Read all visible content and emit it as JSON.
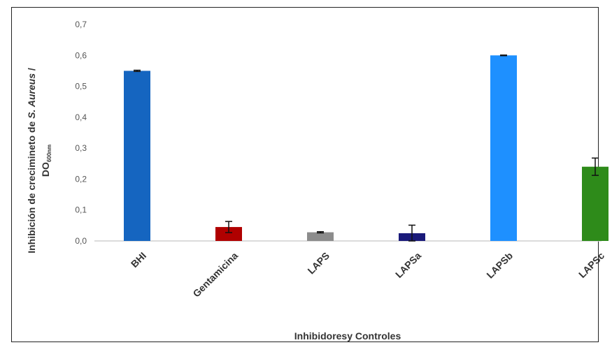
{
  "chart_data": {
    "type": "bar",
    "categories": [
      "BHI",
      "Gentamicina",
      "LAPS",
      "LAPSa",
      "LAPSb",
      "LAPSc"
    ],
    "values": [
      0.55,
      0.045,
      0.028,
      0.025,
      0.6,
      0.24
    ],
    "errors": [
      0.002,
      0.018,
      0.002,
      0.026,
      0.001,
      0.028
    ],
    "colors": [
      "#1565c0",
      "#b00000",
      "#8c8c8c",
      "#1a1a7a",
      "#1e90ff",
      "#2e8b1a"
    ],
    "ylim": [
      0,
      0.7
    ],
    "yticks": [
      "0,0",
      "0,1",
      "0,2",
      "0,3",
      "0,4",
      "0,5",
      "0,6",
      "0,7"
    ],
    "xlabel": "Inhibidoresy Controles",
    "ylabel_main": "Inhibición de crecimineto de ",
    "ylabel_italic": "S. Aureus",
    "ylabel_end": " /",
    "ylabel_line2": "DO",
    "ylabel_sub": "600nm",
    "grid": false
  }
}
